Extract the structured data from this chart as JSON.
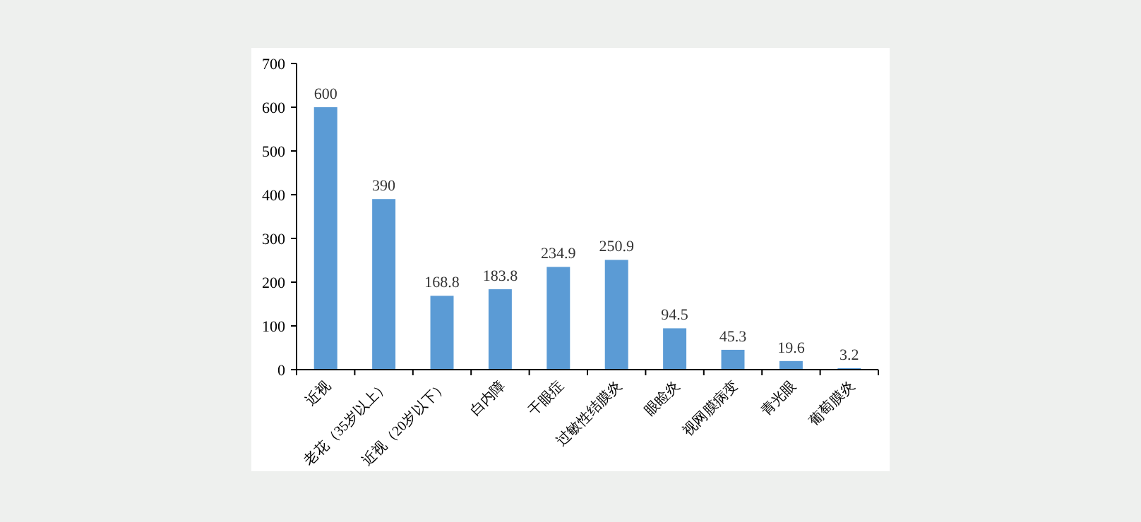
{
  "chart_data": {
    "type": "bar",
    "categories": [
      "近视",
      "老花（35岁以上）",
      "近视（20岁以下）",
      "白内障",
      "干眼症",
      "过敏性结膜炎",
      "眼睑炎",
      "视网膜病变",
      "青光眼",
      "葡萄膜炎"
    ],
    "values": [
      600,
      390,
      168.8,
      183.8,
      234.9,
      250.9,
      94.5,
      45.3,
      19.6,
      3.2
    ],
    "color": "#5b9bd5",
    "ylim": [
      0,
      700
    ],
    "yticks": [
      0,
      100,
      200,
      300,
      400,
      500,
      600,
      700
    ],
    "data_labels": true,
    "grid": false
  }
}
